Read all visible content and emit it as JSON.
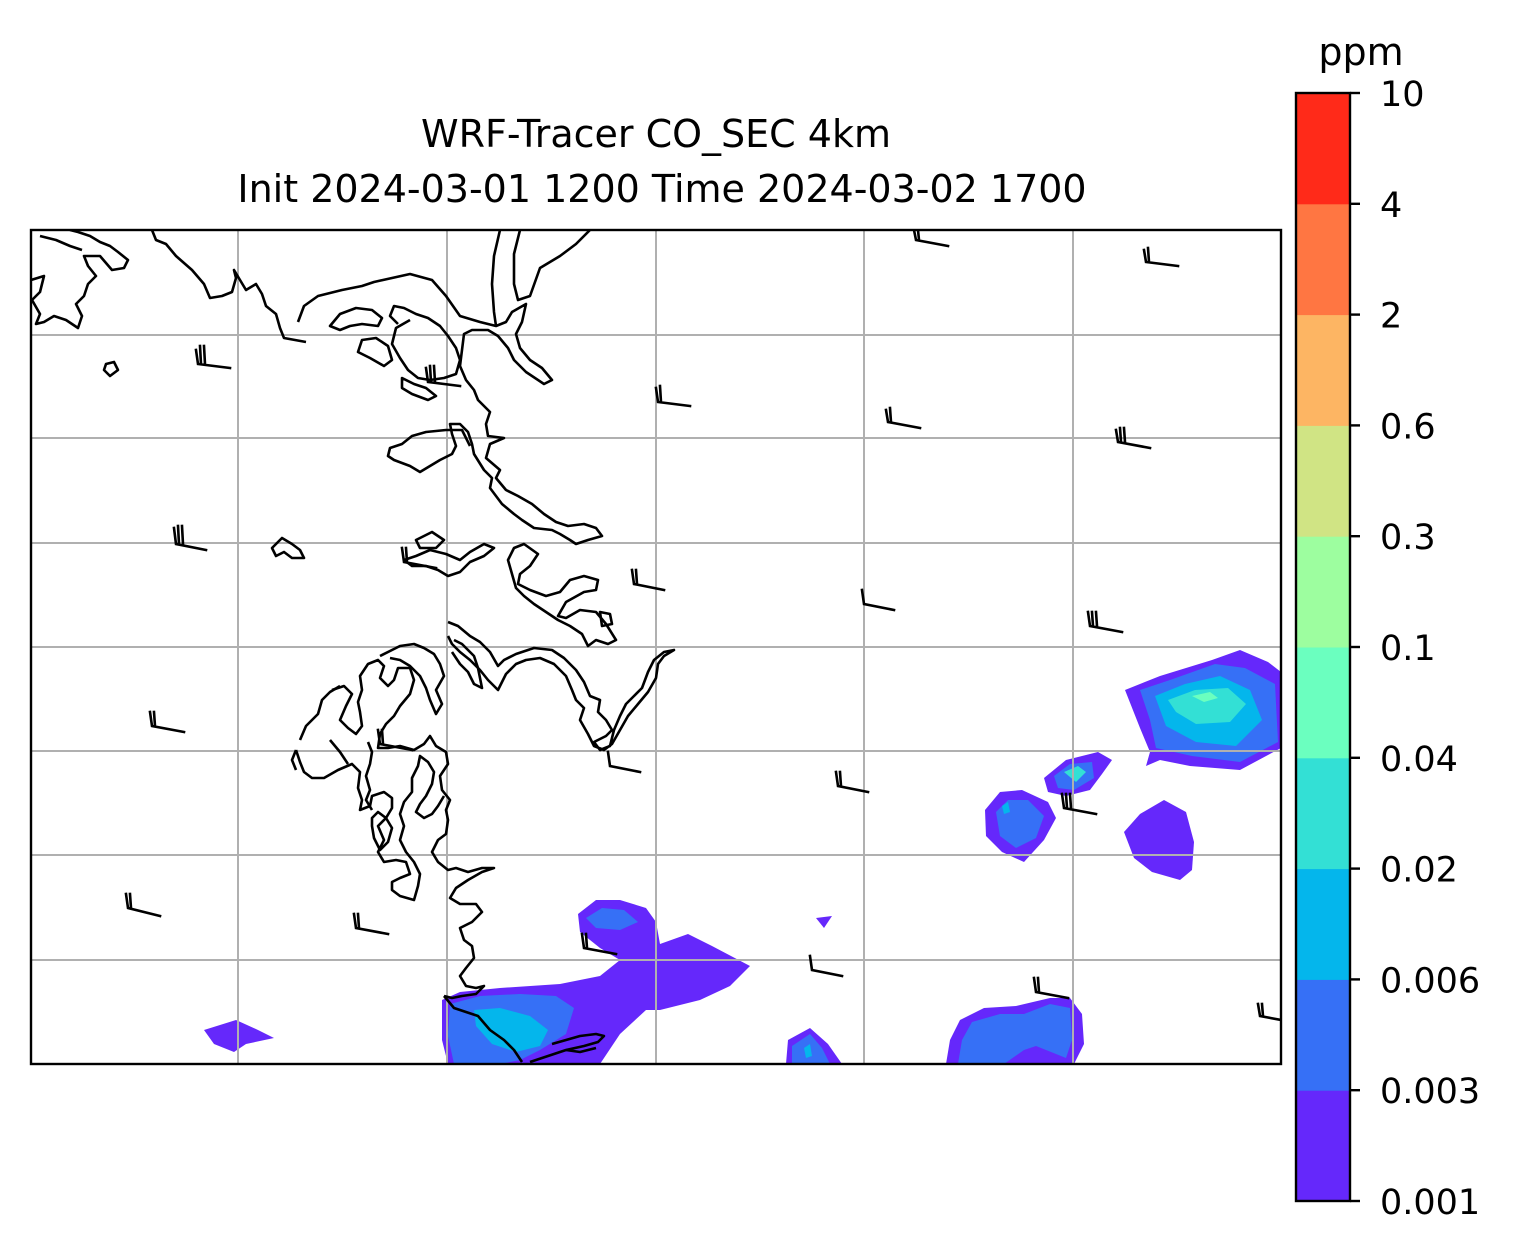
{
  "title_line1": "WRF-Tracer CO_SEC 4km",
  "title_line2": "Init 2024-03-01 1200 Time 2024-03-02 1700",
  "colorbar": {
    "unit": "ppm",
    "levels": [
      "0.001",
      "0.003",
      "0.006",
      "0.02",
      "0.04",
      "0.1",
      "0.3",
      "0.6",
      "2",
      "4",
      "10"
    ],
    "colors": [
      "#6528fb",
      "#3670f6",
      "#04b6ec",
      "#33e0d5",
      "#6bffbf",
      "#9dfe9f",
      "#d0e484",
      "#fdb563",
      "#ff7642",
      "#ff2a19"
    ]
  },
  "colors": {
    "gridline": "#b0b0b0",
    "coastline": "#000000",
    "wind_barb": "#000000"
  },
  "map": {
    "gridlines": true,
    "features": [
      "coastline",
      "wind-barbs",
      "filled-contours"
    ]
  }
}
